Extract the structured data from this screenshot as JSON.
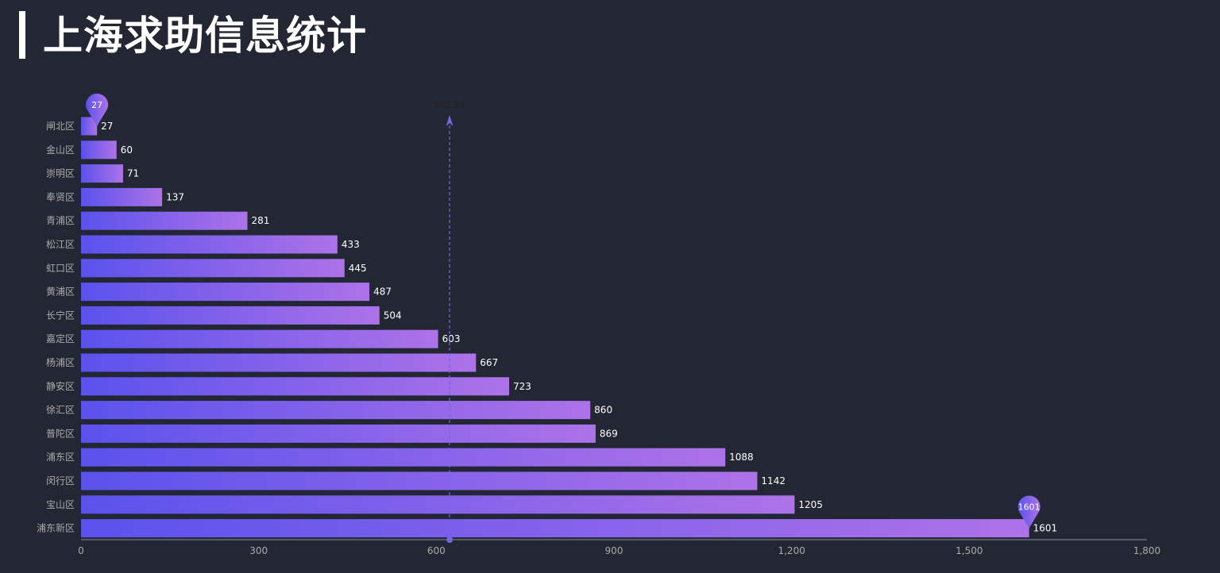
{
  "page": {
    "title": "上海求助信息统计"
  },
  "colors": {
    "background": "#232734",
    "bar_start": "#5a52ec",
    "bar_end": "#ad72e8",
    "average_line": "#7467e2",
    "axis": "#8a8fa0"
  },
  "chart_data": {
    "type": "bar",
    "orientation": "horizontal",
    "categories": [
      "闸北区",
      "金山区",
      "崇明区",
      "奉贤区",
      "青浦区",
      "松江区",
      "虹口区",
      "黄浦区",
      "长宁区",
      "嘉定区",
      "杨浦区",
      "静安区",
      "徐汇区",
      "普陀区",
      "浦东区",
      "闵行区",
      "宝山区",
      "浦东新区"
    ],
    "values": [
      27,
      60,
      71,
      137,
      281,
      433,
      445,
      487,
      504,
      603,
      667,
      723,
      860,
      869,
      1088,
      1142,
      1205,
      1601
    ],
    "xlim": [
      0,
      1800
    ],
    "x_ticks": [
      "0",
      "300",
      "600",
      "900",
      "1,200",
      "1,500",
      "1,800"
    ],
    "x_tick_values": [
      0,
      300,
      600,
      900,
      1200,
      1500,
      1800
    ],
    "average_line": {
      "value": 622.39,
      "label": "622.39"
    },
    "mark_points": [
      {
        "label": "27",
        "value": 27,
        "category": "闸北区"
      },
      {
        "label": "1601",
        "value": 1601,
        "category": "浦东新区"
      }
    ],
    "grid": false
  }
}
